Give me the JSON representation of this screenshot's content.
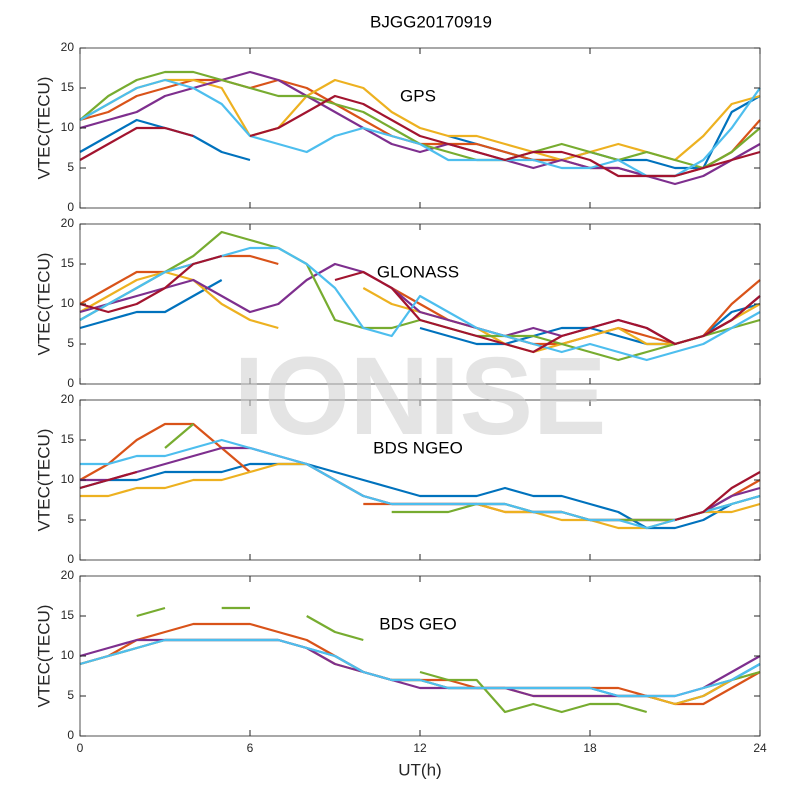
{
  "title": "BJGG20170919",
  "watermark": "IONISE",
  "chart_data": [
    {
      "type": "line",
      "annotation": "GPS",
      "ylabel": "VTEC(TECU)",
      "xlim": [
        0,
        24
      ],
      "xticks": [
        0,
        6,
        12,
        18,
        24
      ],
      "ylim": [
        0,
        20
      ],
      "yticks": [
        0,
        5,
        10,
        15,
        20
      ],
      "x": [
        0,
        1,
        2,
        3,
        4,
        5,
        6,
        7,
        8,
        9,
        10,
        11,
        12,
        13,
        14,
        15,
        16,
        17,
        18,
        19,
        20,
        21,
        22,
        23,
        24
      ],
      "series": [
        {
          "color": "#0072BD",
          "values": [
            7,
            9,
            11,
            10,
            9,
            7,
            6,
            null,
            null,
            null,
            null,
            null,
            null,
            9,
            8,
            7,
            6,
            6,
            7,
            6,
            6,
            5,
            5,
            12,
            14
          ]
        },
        {
          "color": "#D95319",
          "values": [
            11,
            12,
            14,
            15,
            16,
            16,
            15,
            16,
            15,
            13,
            11,
            9,
            8,
            8,
            8,
            7,
            6,
            6,
            5,
            5,
            4,
            4,
            5,
            7,
            11
          ]
        },
        {
          "color": "#EDB120",
          "values": [
            11,
            13,
            15,
            16,
            16,
            15,
            9,
            10,
            14,
            16,
            15,
            12,
            10,
            9,
            9,
            8,
            7,
            6,
            7,
            8,
            7,
            6,
            9,
            13,
            14
          ]
        },
        {
          "color": "#7E2F8E",
          "values": [
            10,
            11,
            12,
            14,
            15,
            16,
            17,
            16,
            14,
            12,
            10,
            8,
            7,
            8,
            7,
            6,
            5,
            6,
            5,
            5,
            4,
            3,
            4,
            6,
            8
          ]
        },
        {
          "color": "#77AC30",
          "values": [
            11,
            14,
            16,
            17,
            17,
            16,
            15,
            14,
            14,
            13,
            12,
            10,
            8,
            7,
            6,
            6,
            7,
            8,
            7,
            6,
            7,
            6,
            5,
            7,
            10
          ]
        },
        {
          "color": "#4DBEEE",
          "values": [
            11,
            13,
            15,
            16,
            15,
            13,
            9,
            8,
            7,
            9,
            10,
            9,
            8,
            6,
            6,
            6,
            6,
            5,
            5,
            6,
            4,
            4,
            6,
            10,
            15
          ]
        },
        {
          "color": "#A2142F",
          "values": [
            6,
            8,
            10,
            10,
            9,
            null,
            9,
            10,
            12,
            14,
            13,
            11,
            9,
            8,
            7,
            6,
            7,
            7,
            6,
            4,
            4,
            4,
            5,
            6,
            7
          ]
        }
      ]
    },
    {
      "type": "line",
      "annotation": "GLONASS",
      "ylabel": "VTEC(TECU)",
      "xlim": [
        0,
        24
      ],
      "xticks": [
        0,
        6,
        12,
        18,
        24
      ],
      "ylim": [
        0,
        20
      ],
      "yticks": [
        0,
        5,
        10,
        15,
        20
      ],
      "x": [
        0,
        1,
        2,
        3,
        4,
        5,
        6,
        7,
        8,
        9,
        10,
        11,
        12,
        13,
        14,
        15,
        16,
        17,
        18,
        19,
        20,
        21,
        22,
        23,
        24
      ],
      "series": [
        {
          "color": "#0072BD",
          "values": [
            7,
            8,
            9,
            9,
            11,
            13,
            null,
            null,
            null,
            null,
            null,
            null,
            7,
            6,
            5,
            5,
            6,
            7,
            7,
            6,
            5,
            5,
            6,
            9,
            10
          ]
        },
        {
          "color": "#D95319",
          "values": [
            10,
            12,
            14,
            14,
            15,
            16,
            16,
            15,
            null,
            null,
            null,
            12,
            10,
            8,
            7,
            6,
            5,
            5,
            6,
            7,
            6,
            5,
            6,
            10,
            13
          ]
        },
        {
          "color": "#EDB120",
          "values": [
            9,
            11,
            13,
            14,
            13,
            10,
            8,
            7,
            null,
            null,
            12,
            10,
            9,
            8,
            7,
            5,
            4,
            5,
            6,
            7,
            5,
            5,
            6,
            8,
            10
          ]
        },
        {
          "color": "#7E2F8E",
          "values": [
            9,
            10,
            11,
            12,
            13,
            11,
            9,
            10,
            13,
            15,
            14,
            12,
            9,
            8,
            7,
            6,
            7,
            6,
            7,
            8,
            7,
            5,
            6,
            8,
            11
          ]
        },
        {
          "color": "#77AC30",
          "values": [
            8,
            10,
            12,
            14,
            16,
            19,
            18,
            17,
            15,
            8,
            7,
            7,
            8,
            7,
            6,
            6,
            6,
            5,
            4,
            3,
            4,
            5,
            6,
            7,
            8
          ]
        },
        {
          "color": "#4DBEEE",
          "values": [
            8,
            10,
            12,
            14,
            15,
            16,
            17,
            17,
            15,
            12,
            7,
            6,
            11,
            9,
            7,
            6,
            5,
            4,
            5,
            4,
            3,
            4,
            5,
            7,
            9
          ]
        },
        {
          "color": "#A2142F",
          "values": [
            10,
            9,
            10,
            12,
            15,
            16,
            null,
            null,
            null,
            13,
            14,
            12,
            8,
            7,
            6,
            5,
            4,
            6,
            7,
            8,
            7,
            5,
            6,
            8,
            11
          ]
        }
      ]
    },
    {
      "type": "line",
      "annotation": "BDS NGEO",
      "ylabel": "VTEC(TECU)",
      "xlim": [
        0,
        24
      ],
      "xticks": [
        0,
        6,
        12,
        18,
        24
      ],
      "ylim": [
        0,
        20
      ],
      "yticks": [
        0,
        5,
        10,
        15,
        20
      ],
      "x": [
        0,
        1,
        2,
        3,
        4,
        5,
        6,
        7,
        8,
        9,
        10,
        11,
        12,
        13,
        14,
        15,
        16,
        17,
        18,
        19,
        20,
        21,
        22,
        23,
        24
      ],
      "series": [
        {
          "color": "#0072BD",
          "values": [
            9,
            10,
            10,
            11,
            11,
            11,
            12,
            12,
            12,
            11,
            10,
            9,
            8,
            8,
            8,
            9,
            8,
            8,
            7,
            6,
            4,
            4,
            5,
            7,
            8
          ]
        },
        {
          "color": "#D95319",
          "values": [
            10,
            12,
            15,
            17,
            17,
            14,
            11,
            null,
            null,
            null,
            7,
            7,
            7,
            7,
            7,
            6,
            6,
            6,
            5,
            5,
            5,
            5,
            6,
            8,
            10
          ]
        },
        {
          "color": "#EDB120",
          "values": [
            8,
            8,
            9,
            9,
            10,
            10,
            11,
            12,
            12,
            10,
            8,
            7,
            7,
            7,
            7,
            6,
            6,
            5,
            5,
            4,
            4,
            5,
            6,
            6,
            7
          ]
        },
        {
          "color": "#7E2F8E",
          "values": [
            10,
            10,
            11,
            12,
            13,
            14,
            14,
            13,
            12,
            10,
            8,
            7,
            7,
            7,
            7,
            7,
            6,
            6,
            5,
            5,
            5,
            5,
            6,
            8,
            9
          ]
        },
        {
          "color": "#77AC30",
          "values": [
            null,
            null,
            null,
            14,
            17,
            null,
            null,
            null,
            null,
            null,
            null,
            6,
            6,
            6,
            7,
            7,
            6,
            6,
            5,
            5,
            5,
            5,
            6,
            7,
            8
          ]
        },
        {
          "color": "#4DBEEE",
          "values": [
            12,
            12,
            13,
            13,
            14,
            15,
            14,
            13,
            12,
            10,
            8,
            7,
            7,
            7,
            7,
            7,
            6,
            6,
            5,
            5,
            4,
            5,
            6,
            7,
            8
          ]
        },
        {
          "color": "#A2142F",
          "values": [
            9,
            10,
            11,
            null,
            null,
            null,
            null,
            null,
            null,
            null,
            null,
            null,
            null,
            null,
            null,
            null,
            null,
            null,
            null,
            null,
            null,
            5,
            6,
            9,
            11
          ]
        }
      ]
    },
    {
      "type": "line",
      "annotation": "BDS GEO",
      "ylabel": "VTEC(TECU)",
      "xlabel": "UT(h)",
      "xlim": [
        0,
        24
      ],
      "xticks": [
        0,
        6,
        12,
        18,
        24
      ],
      "ylim": [
        0,
        20
      ],
      "yticks": [
        0,
        5,
        10,
        15,
        20
      ],
      "x": [
        0,
        1,
        2,
        3,
        4,
        5,
        6,
        7,
        8,
        9,
        10,
        11,
        12,
        13,
        14,
        15,
        16,
        17,
        18,
        19,
        20,
        21,
        22,
        23,
        24
      ],
      "series": [
        {
          "color": "#0072BD",
          "values": [
            9,
            10,
            11,
            12,
            12,
            12,
            12,
            12,
            11,
            10,
            8,
            7,
            7,
            6,
            6,
            6,
            6,
            6,
            6,
            5,
            5,
            4,
            5,
            7,
            9
          ]
        },
        {
          "color": "#D95319",
          "values": [
            9,
            10,
            12,
            13,
            14,
            14,
            14,
            13,
            12,
            10,
            8,
            7,
            7,
            7,
            6,
            6,
            6,
            6,
            6,
            6,
            5,
            4,
            4,
            6,
            8
          ]
        },
        {
          "color": "#EDB120",
          "values": [
            9,
            10,
            11,
            12,
            12,
            12,
            12,
            12,
            11,
            9,
            8,
            7,
            7,
            6,
            6,
            6,
            5,
            5,
            5,
            5,
            5,
            4,
            5,
            7,
            8
          ]
        },
        {
          "color": "#7E2F8E",
          "values": [
            10,
            11,
            12,
            12,
            12,
            12,
            12,
            12,
            11,
            9,
            8,
            7,
            6,
            6,
            6,
            6,
            5,
            5,
            5,
            5,
            5,
            5,
            6,
            8,
            10
          ]
        },
        {
          "color": "#77AC30",
          "values": [
            null,
            null,
            15,
            16,
            null,
            16,
            16,
            null,
            15,
            13,
            12,
            null,
            8,
            7,
            7,
            3,
            4,
            3,
            4,
            4,
            3,
            null,
            6,
            7,
            8
          ]
        },
        {
          "color": "#4DBEEE",
          "values": [
            9,
            10,
            11,
            12,
            12,
            12,
            12,
            12,
            11,
            10,
            8,
            7,
            7,
            6,
            6,
            6,
            6,
            6,
            6,
            5,
            5,
            5,
            6,
            7,
            9
          ]
        }
      ]
    }
  ]
}
